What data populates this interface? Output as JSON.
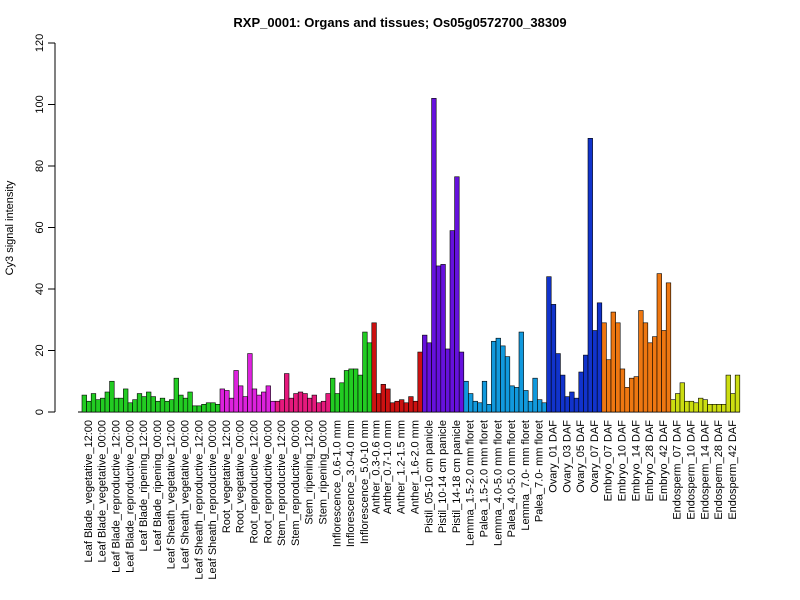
{
  "chart_data": {
    "type": "bar",
    "title": "RXP_0001: Organs and tissues; Os05g0572700_38309",
    "ylabel": "Cy3 signal intensity",
    "xlabel": "",
    "ylim": [
      0,
      120
    ],
    "yticks": [
      0,
      20,
      40,
      60,
      80,
      100,
      120
    ],
    "grid": false,
    "groups": [
      {
        "label": "Leaf Blade_vegetative_12:00",
        "color": "#22cc22",
        "values": [
          5.5,
          3.5,
          6.0
        ]
      },
      {
        "label": "Leaf Blade_vegetative_00:00",
        "color": "#22cc22",
        "values": [
          4.0,
          4.5,
          6.5
        ]
      },
      {
        "label": "Leaf Blade_reproductive_12:00",
        "color": "#22cc22",
        "values": [
          10.0,
          4.5,
          4.5
        ]
      },
      {
        "label": "Leaf Blade_reproductive_00:00",
        "color": "#22cc22",
        "values": [
          7.5,
          3.0,
          4.0
        ]
      },
      {
        "label": "Leaf Blade_ripening_12:00",
        "color": "#22cc22",
        "values": [
          6.0,
          5.0,
          6.5
        ]
      },
      {
        "label": "Leaf Blade_ripening_00:00",
        "color": "#22cc22",
        "values": [
          5.0,
          3.5,
          4.5
        ]
      },
      {
        "label": "Leaf Sheath_vegetative_12:00",
        "color": "#22cc22",
        "values": [
          3.5,
          4.0,
          11.0
        ]
      },
      {
        "label": "Leaf Sheath_vegetative_00:00",
        "color": "#22cc22",
        "values": [
          5.5,
          4.5,
          6.5
        ]
      },
      {
        "label": "Leaf Sheath_reproductive_12:00",
        "color": "#22cc22",
        "values": [
          2.0,
          2.0,
          2.5
        ]
      },
      {
        "label": "Leaf Sheath_reproductive_00:00",
        "color": "#22cc22",
        "values": [
          3.0,
          3.0,
          2.5
        ]
      },
      {
        "label": "Root_vegetative_12:00",
        "color": "#dd22dd",
        "values": [
          7.5,
          7.0,
          4.5
        ]
      },
      {
        "label": "Root_vegetative_00:00",
        "color": "#dd22dd",
        "values": [
          13.5,
          8.5,
          5.0
        ]
      },
      {
        "label": "Root_reproductive_12:00",
        "color": "#dd22dd",
        "values": [
          19.0,
          7.5,
          5.5
        ]
      },
      {
        "label": "Root_reproductive_00:00",
        "color": "#dd22dd",
        "values": [
          6.5,
          8.5,
          3.5
        ]
      },
      {
        "label": "Stem_reproductive_12:00",
        "color": "#e6197d",
        "values": [
          3.5,
          4.0,
          12.5
        ]
      },
      {
        "label": "Stem_reproductive_00:00",
        "color": "#e6197d",
        "values": [
          4.5,
          6.0,
          6.5
        ]
      },
      {
        "label": "Stem_ripening_12:00",
        "color": "#e6197d",
        "values": [
          6.0,
          4.5,
          5.5
        ]
      },
      {
        "label": "Stem_ripening_00:00",
        "color": "#e6197d",
        "values": [
          3.0,
          3.5,
          6.0
        ]
      },
      {
        "label": "Inflorescence_0.6-1.0 mm",
        "color": "#22cc22",
        "values": [
          11.0,
          6.0,
          9.5
        ]
      },
      {
        "label": "Inflorescence_3.0-4.0 mm",
        "color": "#22cc22",
        "values": [
          13.5,
          14.0,
          14.0
        ]
      },
      {
        "label": "Inflorescence_5.0-10 mm",
        "color": "#22cc22",
        "values": [
          12.0,
          26.0,
          22.5
        ]
      },
      {
        "label": "Anther_0.3-0.6 mm",
        "color": "#cc1111",
        "values": [
          29.0,
          6.0
        ]
      },
      {
        "label": "Anther_0.7-1.0 mm",
        "color": "#cc1111",
        "values": [
          9.0,
          7.5,
          3.0
        ]
      },
      {
        "label": "Anther_1.2-1.5 mm",
        "color": "#cc1111",
        "values": [
          3.5,
          4.0,
          3.0
        ]
      },
      {
        "label": "Anther_1.6-2.0 mm",
        "color": "#cc1111",
        "values": [
          5.0,
          3.5,
          19.5
        ]
      },
      {
        "label": "Pistil_05-10 cm panicle",
        "color": "#6611dd",
        "values": [
          25.0,
          22.5,
          102.0
        ]
      },
      {
        "label": "Pistil_10-14 cm panicle",
        "color": "#6611dd",
        "values": [
          47.5,
          48.0,
          20.5
        ]
      },
      {
        "label": "Pistil_14-18 cm panicle",
        "color": "#6611dd",
        "values": [
          59.0,
          76.5,
          19.5
        ]
      },
      {
        "label": "Lemma_1.5-2.0 mm floret",
        "color": "#1199dd",
        "values": [
          10.0,
          6.0,
          3.5
        ]
      },
      {
        "label": "Palea_1.5-2.0 mm floret",
        "color": "#1199dd",
        "values": [
          3.0,
          10.0,
          2.5
        ]
      },
      {
        "label": "Lemma_4.0-5.0 mm floret",
        "color": "#1199dd",
        "values": [
          23.0,
          24.0,
          21.5
        ]
      },
      {
        "label": "Palea_4.0-5.0 mm floret",
        "color": "#1199dd",
        "values": [
          18.0,
          8.5,
          8.0
        ]
      },
      {
        "label": "Lemma_7.0- mm floret",
        "color": "#1199dd",
        "values": [
          26.0,
          7.0,
          3.5
        ]
      },
      {
        "label": "Palea_7.0- mm floret",
        "color": "#1199dd",
        "values": [
          11.0,
          4.0,
          3.0
        ]
      },
      {
        "label": "Ovary_01 DAF",
        "color": "#1133cc",
        "values": [
          44.0,
          35.0,
          19.0
        ]
      },
      {
        "label": "Ovary_03 DAF",
        "color": "#1133cc",
        "values": [
          12.0,
          5.0,
          6.5
        ]
      },
      {
        "label": "Ovary_05 DAF",
        "color": "#1133cc",
        "values": [
          4.5,
          13.0,
          18.5
        ]
      },
      {
        "label": "Ovary_07 DAF",
        "color": "#1133cc",
        "values": [
          89.0,
          26.5,
          35.5
        ]
      },
      {
        "label": "Embryo_07 DAF",
        "color": "#ee7711",
        "values": [
          29.0,
          17.0,
          32.5
        ]
      },
      {
        "label": "Embryo_10 DAF",
        "color": "#ee7711",
        "values": [
          29.0,
          14.0,
          8.0
        ]
      },
      {
        "label": "Embryo_14 DAF",
        "color": "#ee7711",
        "values": [
          11.0,
          11.5,
          33.0
        ]
      },
      {
        "label": "Embryo_28 DAF",
        "color": "#ee7711",
        "values": [
          29.0,
          22.5,
          24.5
        ]
      },
      {
        "label": "Embryo_42 DAF",
        "color": "#ee7711",
        "values": [
          45.0,
          26.5,
          42.0
        ]
      },
      {
        "label": "Endosperm_07 DAF",
        "color": "#ccdd11",
        "values": [
          4.0,
          6.0,
          9.5
        ]
      },
      {
        "label": "Endosperm_10 DAF",
        "color": "#ccdd11",
        "values": [
          3.5,
          3.5,
          3.0
        ]
      },
      {
        "label": "Endosperm_14 DAF",
        "color": "#ccdd11",
        "values": [
          4.5,
          4.0,
          2.5
        ]
      },
      {
        "label": "Endosperm_28 DAF",
        "color": "#ccdd11",
        "values": [
          2.5,
          2.5,
          2.5
        ]
      },
      {
        "label": "Endosperm_42 DAF",
        "color": "#ccdd11",
        "values": [
          12.0,
          6.0,
          12.0
        ]
      }
    ]
  }
}
